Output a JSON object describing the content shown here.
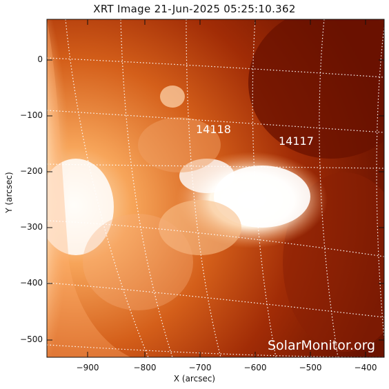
{
  "title": "XRT Image 21-Jun-2025 05:25:10.362",
  "axes": {
    "xlabel": "X (arcsec)",
    "ylabel": "Y (arcsec)",
    "xticks": [
      "−900",
      "−800",
      "−700",
      "−600",
      "−500",
      "−400"
    ],
    "yticks": [
      "0",
      "−100",
      "−200",
      "−300",
      "−400",
      "−500"
    ]
  },
  "regions": [
    "14118",
    "14117"
  ],
  "watermark": "SolarMonitor.org",
  "colors": {
    "dark": "#7a1600",
    "mid": "#e06a1a",
    "bright": "#ffd9a0",
    "white": "#ffffff"
  }
}
